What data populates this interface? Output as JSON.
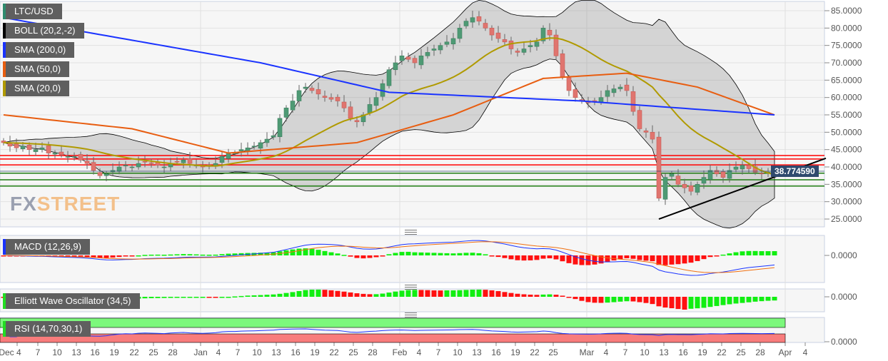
{
  "legends": [
    {
      "label": "LTC/USD",
      "color": "#2e8b6e"
    },
    {
      "label": "BOLL (20,2,-2)",
      "color": "#000000"
    },
    {
      "label": "SMA (200,0)",
      "color": "#1a33ff"
    },
    {
      "label": "SMA (50,0)",
      "color": "#e85d10"
    },
    {
      "label": "SMA (20,0)",
      "color": "#b09a00"
    }
  ],
  "panel_legends": {
    "macd": "MACD (12,26,9)",
    "ewo": "Elliott Wave Oscillator (34,5)",
    "rsi": "RSI (14,70,30,1)"
  },
  "logo": {
    "fx": "FX",
    "street": "STREET"
  },
  "last_price": "38.774590",
  "chart_data": {
    "type": "candlestick",
    "pair": "LTC/USD",
    "closes": [
      47,
      46,
      45.5,
      46,
      45,
      45,
      45.5,
      44,
      44,
      43.5,
      43,
      43,
      42,
      41,
      39,
      37.5,
      38,
      39,
      40,
      40.5,
      40,
      41,
      41.5,
      41,
      40.5,
      40,
      41,
      41.5,
      42,
      41,
      40.5,
      40,
      40.5,
      41,
      43,
      44,
      44,
      45,
      45.5,
      46,
      47,
      48,
      49,
      54,
      57,
      59,
      62,
      63,
      62,
      61,
      60,
      59.5,
      59,
      57,
      54,
      53,
      55,
      58,
      60,
      64,
      68,
      70,
      72,
      71,
      70,
      72,
      73,
      74,
      75,
      76,
      77,
      80,
      82,
      83,
      82,
      80,
      78,
      77,
      76,
      74,
      73,
      74,
      75,
      76,
      80,
      78,
      72,
      66,
      62,
      60,
      59,
      58.5,
      59,
      60,
      62,
      62.5,
      63,
      62,
      56,
      51,
      50,
      48,
      31,
      37,
      38,
      35,
      34,
      33,
      35,
      37,
      39,
      38,
      37,
      39,
      40,
      40.5,
      39.5,
      38.5,
      38,
      38.5,
      38.77459
    ],
    "sma200": [
      [
        0,
        83
      ],
      [
        40,
        70
      ],
      [
        60,
        61.5
      ],
      [
        90,
        59
      ],
      [
        120,
        55
      ]
    ],
    "sma50": [
      [
        0,
        55
      ],
      [
        20,
        51
      ],
      [
        35,
        44
      ],
      [
        55,
        47
      ],
      [
        70,
        55
      ],
      [
        84,
        65.5
      ],
      [
        97,
        67
      ],
      [
        108,
        63
      ],
      [
        120,
        55
      ]
    ],
    "resistance_levels": [
      43.3,
      42.3,
      40.6
    ],
    "support_levels": [
      38.2,
      36.3,
      34.5
    ],
    "trendline": [
      [
        102,
        25
      ],
      [
        128,
        42.5
      ]
    ],
    "y_ticks": [
      "85.0000",
      "80.0000",
      "75.0000",
      "70.0000",
      "65.0000",
      "60.0000",
      "55.0000",
      "50.0000",
      "45.0000",
      "40.0000",
      "35.0000",
      "30.0000",
      "25.0000"
    ],
    "ylim": [
      25,
      85
    ],
    "x_ticks": [
      "Dec 4",
      "7",
      "10",
      "13",
      "16",
      "19",
      "22",
      "25",
      "28",
      "Jan",
      "4",
      "7",
      "10",
      "13",
      "16",
      "19",
      "22",
      "25",
      "28",
      "Feb",
      "4",
      "7",
      "10",
      "13",
      "16",
      "19",
      "22",
      "25",
      "Mar",
      "4",
      "7",
      "10",
      "13",
      "16",
      "19",
      "22",
      "25",
      "28",
      "Apr",
      "4"
    ],
    "indicator_zero_label": "0.0000"
  }
}
